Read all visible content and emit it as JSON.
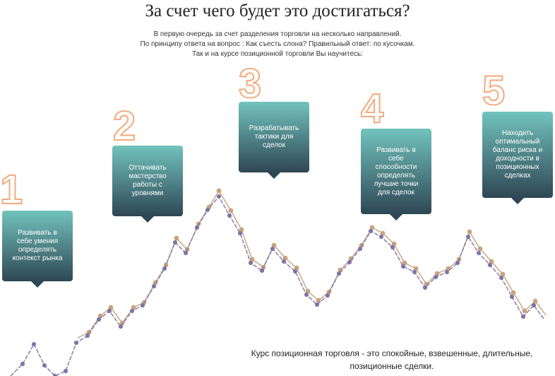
{
  "title": "За счет чего будет это достигаться?",
  "intro": [
    "В первую очередь за счет разделения торговли на несколько направлений.",
    "По принципу ответа на вопрос : Как съесть слона? Правильный ответ: по кусочкам.",
    "Так и на курсе позиционной торговли Вы научитесь:"
  ],
  "steps": [
    {
      "number": "1",
      "lines": [
        "Развивать в",
        "себе умения",
        "определять",
        "контекст рынка"
      ]
    },
    {
      "number": "2",
      "lines": [
        "Оттачивать",
        "мастерство",
        "работы с",
        "уровнями"
      ]
    },
    {
      "number": "3",
      "lines": [
        "Разрабатывать",
        "тактики для",
        "сделок"
      ]
    },
    {
      "number": "4",
      "lines": [
        "Развивать в",
        "себе",
        "способности",
        "определять",
        "лучшие точки",
        "для сделок"
      ]
    },
    {
      "number": "5",
      "lines": [
        "Находить",
        "оптимальный",
        "баланс риска и",
        "доходности в",
        "позиционных",
        "сделках"
      ]
    }
  ],
  "footer": [
    "Курс позиционная торговля - это спокойные, взвешенные, длительные,",
    "позиционные сделки."
  ]
}
